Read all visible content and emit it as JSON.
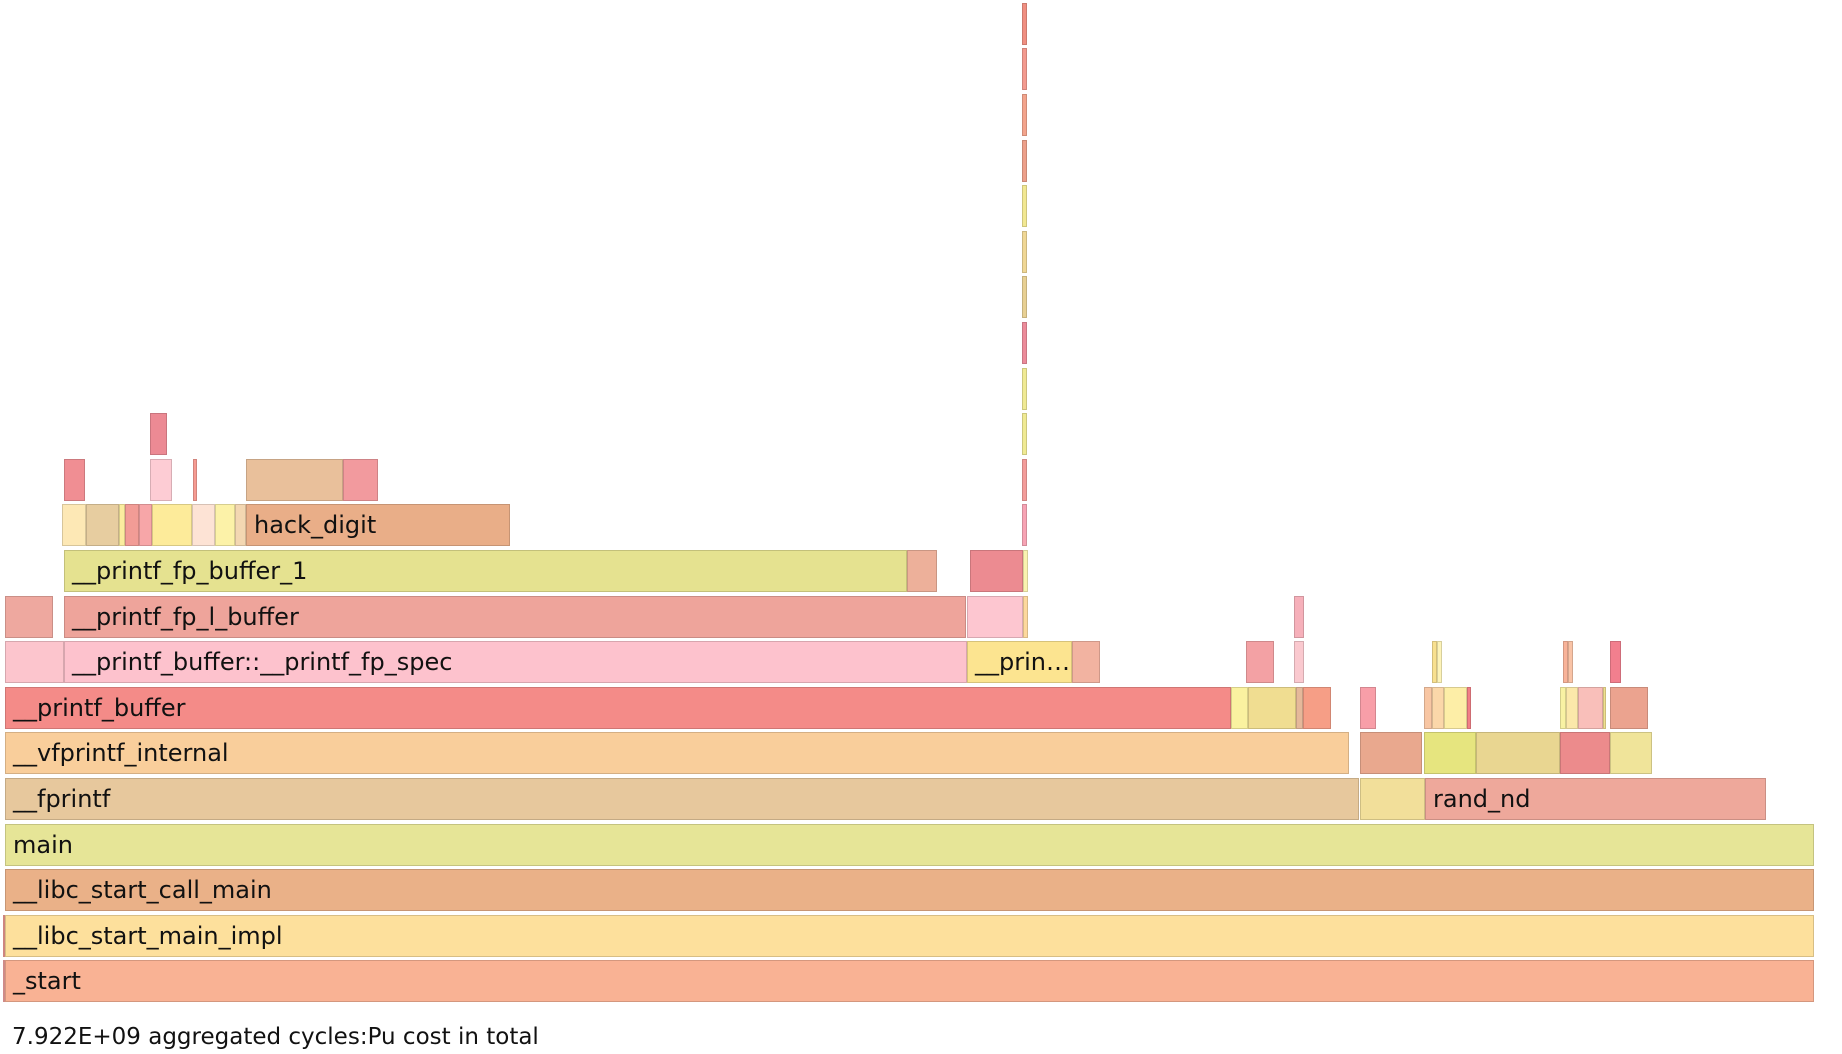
{
  "chart_data": {
    "type": "flamegraph",
    "total": "7.922E+09",
    "metric": "aggregated cycles:Pu",
    "frames": [
      {
        "d": 0,
        "s": 3,
        "w": 1,
        "c": "#f4a3a0"
      },
      {
        "d": 0,
        "s": 5,
        "w": 1809,
        "c": "#f9b294",
        "label": "_start"
      },
      {
        "d": 1,
        "s": 3,
        "w": 1,
        "c": "#f29c95"
      },
      {
        "d": 1,
        "s": 5,
        "w": 1809,
        "c": "#fde09c",
        "label": "__libc_start_main_impl"
      },
      {
        "d": 2,
        "s": 5,
        "w": 1809,
        "c": "#eab188",
        "label": "__libc_start_call_main"
      },
      {
        "d": 3,
        "s": 5,
        "w": 1809,
        "c": "#e6e597",
        "label": "main"
      },
      {
        "d": 4,
        "s": 5,
        "w": 1354,
        "c": "#e7c89d",
        "label": "__fprintf"
      },
      {
        "d": 4,
        "s": 1360,
        "w": 65,
        "c": "#f2df9a"
      },
      {
        "d": 4,
        "s": 1425,
        "w": 341,
        "c": "#eea89b",
        "label": "rand_nd"
      },
      {
        "d": 5,
        "s": 5,
        "w": 1344,
        "c": "#f9ce9b",
        "label": "__vfprintf_internal"
      },
      {
        "d": 5,
        "s": 1360,
        "w": 62,
        "c": "#e9a88e"
      },
      {
        "d": 5,
        "s": 1424,
        "w": 52,
        "c": "#e6e57f"
      },
      {
        "d": 5,
        "s": 1476,
        "w": 84,
        "c": "#e9d691"
      },
      {
        "d": 5,
        "s": 1560,
        "w": 50,
        "c": "#ec8b8c"
      },
      {
        "d": 5,
        "s": 1610,
        "w": 42,
        "c": "#f0e49a"
      },
      {
        "d": 6,
        "s": 5,
        "w": 1226,
        "c": "#f48b88",
        "label": "__printf_buffer"
      },
      {
        "d": 6,
        "s": 1231,
        "w": 17,
        "c": "#faf2a0"
      },
      {
        "d": 6,
        "s": 1248,
        "w": 48,
        "c": "#f0dd91"
      },
      {
        "d": 6,
        "s": 1296,
        "w": 7,
        "c": "#e5b89a"
      },
      {
        "d": 6,
        "s": 1303,
        "w": 28,
        "c": "#f69e86"
      },
      {
        "d": 6,
        "s": 1360,
        "w": 16,
        "c": "#f89ea8"
      },
      {
        "d": 6,
        "s": 1424,
        "w": 8,
        "c": "#f8c6a3"
      },
      {
        "d": 6,
        "s": 1432,
        "w": 12,
        "c": "#fbd7a9"
      },
      {
        "d": 6,
        "s": 1444,
        "w": 23,
        "c": "#fdeea7"
      },
      {
        "d": 6,
        "s": 1467,
        "w": 4,
        "c": "#f27f86"
      },
      {
        "d": 6,
        "s": 1560,
        "w": 6,
        "c": "#f8f2a3"
      },
      {
        "d": 6,
        "s": 1566,
        "w": 12,
        "c": "#fbe8aa"
      },
      {
        "d": 6,
        "s": 1578,
        "w": 25,
        "c": "#f9bfba"
      },
      {
        "d": 6,
        "s": 1603,
        "w": 3,
        "c": "#f0e090"
      },
      {
        "d": 6,
        "s": 1610,
        "w": 38,
        "c": "#eba38f"
      },
      {
        "d": 7,
        "s": 5,
        "w": 59,
        "c": "#fcc5cd"
      },
      {
        "d": 7,
        "s": 64,
        "w": 903,
        "c": "#fdc2cd",
        "label": "__printf_buffer::__printf_fp_spec"
      },
      {
        "d": 7,
        "s": 967,
        "w": 105,
        "c": "#fce490",
        "label": "__prin…"
      },
      {
        "d": 7,
        "s": 1072,
        "w": 28,
        "c": "#f2b3a1"
      },
      {
        "d": 7,
        "s": 1246,
        "w": 28,
        "c": "#f3a1a4"
      },
      {
        "d": 7,
        "s": 1294,
        "w": 10,
        "c": "#fac9cf"
      },
      {
        "d": 7,
        "s": 1432,
        "w": 5,
        "c": "#f8e08f"
      },
      {
        "d": 7,
        "s": 1437,
        "w": 5,
        "c": "#fdf3b8"
      },
      {
        "d": 7,
        "s": 1563,
        "w": 5,
        "c": "#f8b399"
      },
      {
        "d": 7,
        "s": 1568,
        "w": 5,
        "c": "#f9c3a6"
      },
      {
        "d": 7,
        "s": 1610,
        "w": 11,
        "c": "#f27f8e"
      },
      {
        "d": 8,
        "s": 5,
        "w": 48,
        "c": "#eea89f"
      },
      {
        "d": 8,
        "s": 64,
        "w": 902,
        "c": "#eea49b",
        "label": "__printf_fp_l_buffer"
      },
      {
        "d": 8,
        "s": 967,
        "w": 56,
        "c": "#fdc6d0"
      },
      {
        "d": 8,
        "s": 1023,
        "w": 5,
        "c": "#fdd89d"
      },
      {
        "d": 8,
        "s": 1294,
        "w": 10,
        "c": "#f6b0ba"
      },
      {
        "d": 9,
        "s": 64,
        "w": 843,
        "c": "#e5e290",
        "label": "__printf_fp_buffer_1"
      },
      {
        "d": 9,
        "s": 907,
        "w": 30,
        "c": "#edb09a"
      },
      {
        "d": 9,
        "s": 970,
        "w": 53,
        "c": "#ec8b91"
      },
      {
        "d": 9,
        "s": 1023,
        "w": 5,
        "c": "#faf3b0"
      },
      {
        "d": 10,
        "s": 62,
        "w": 24,
        "c": "#fde8b5"
      },
      {
        "d": 10,
        "s": 86,
        "w": 33,
        "c": "#e7cda0"
      },
      {
        "d": 10,
        "s": 119,
        "w": 6,
        "c": "#fbed9f"
      },
      {
        "d": 10,
        "s": 125,
        "w": 14,
        "c": "#f29c96"
      },
      {
        "d": 10,
        "s": 139,
        "w": 13,
        "c": "#f7a6a8"
      },
      {
        "d": 10,
        "s": 152,
        "w": 40,
        "c": "#fdeb9a"
      },
      {
        "d": 10,
        "s": 192,
        "w": 23,
        "c": "#fde3d5"
      },
      {
        "d": 10,
        "s": 215,
        "w": 20,
        "c": "#fcf2a8"
      },
      {
        "d": 10,
        "s": 235,
        "w": 11,
        "c": "#f3d7b2"
      },
      {
        "d": 10,
        "s": 246,
        "w": 264,
        "c": "#e9ae88",
        "label": "hack_digit"
      },
      {
        "d": 10,
        "s": 1022,
        "w": 5,
        "c": "#f7a3b4"
      },
      {
        "d": 11,
        "s": 64,
        "w": 21,
        "c": "#f08e93"
      },
      {
        "d": 11,
        "s": 150,
        "w": 22,
        "c": "#fdccd4"
      },
      {
        "d": 11,
        "s": 193,
        "w": 4,
        "c": "#f69b92"
      },
      {
        "d": 11,
        "s": 246,
        "w": 97,
        "c": "#e9c09b"
      },
      {
        "d": 11,
        "s": 343,
        "w": 35,
        "c": "#f29a9e"
      },
      {
        "d": 11,
        "s": 1022,
        "w": 5,
        "c": "#f39c9a"
      },
      {
        "d": 12,
        "s": 150,
        "w": 17,
        "c": "#ec8a94"
      },
      {
        "d": 12,
        "s": 1022,
        "w": 5,
        "c": "#f0ea93"
      },
      {
        "d": 13,
        "s": 1022,
        "w": 5,
        "c": "#f0ea94"
      },
      {
        "d": 14,
        "s": 1022,
        "w": 5,
        "c": "#ec8b9a"
      },
      {
        "d": 15,
        "s": 1022,
        "w": 5,
        "c": "#e8d093"
      },
      {
        "d": 16,
        "s": 1022,
        "w": 5,
        "c": "#f0d795"
      },
      {
        "d": 17,
        "s": 1022,
        "w": 5,
        "c": "#f2e892"
      },
      {
        "d": 18,
        "s": 1022,
        "w": 5,
        "c": "#eda08a"
      },
      {
        "d": 19,
        "s": 1022,
        "w": 5,
        "c": "#f3a48c"
      },
      {
        "d": 20,
        "s": 1022,
        "w": 5,
        "c": "#f39a8f"
      },
      {
        "d": 21,
        "s": 1022,
        "w": 5,
        "c": "#f08f81"
      }
    ]
  },
  "footer": {
    "text": "7.922E+09 aggregated cycles:Pu cost in total"
  }
}
